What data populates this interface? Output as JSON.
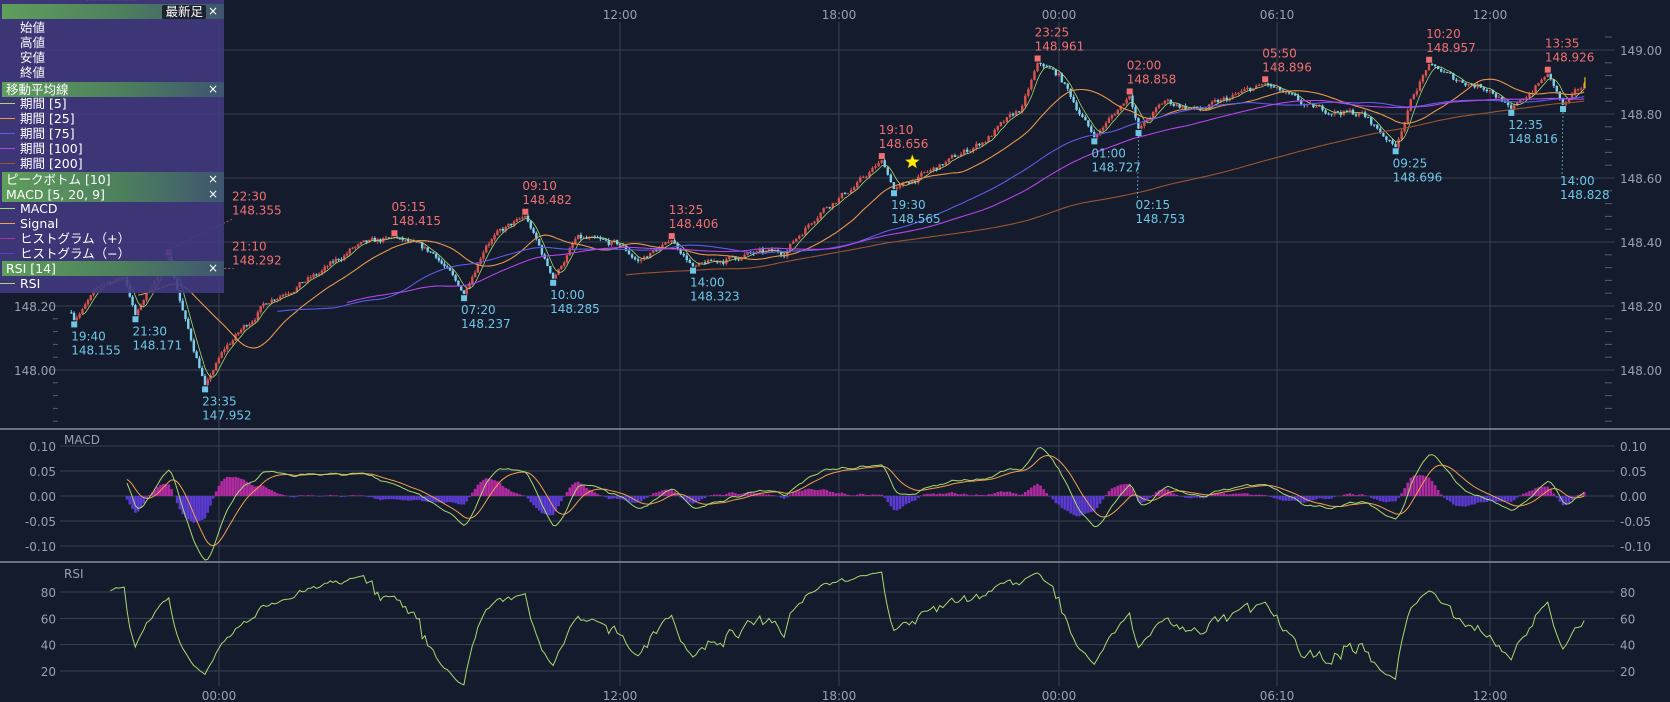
{
  "legend": {
    "latest": {
      "label": "最新足",
      "items": [
        "始値",
        "高値",
        "安値",
        "終値"
      ]
    },
    "ma": {
      "title": "移動平均線",
      "items": [
        {
          "label": "期間 [5]",
          "period": 5,
          "color": "#a9d86e"
        },
        {
          "label": "期間 [25]",
          "period": 25,
          "color": "#e8964a"
        },
        {
          "label": "期間 [75]",
          "period": 75,
          "color": "#5b5ce6"
        },
        {
          "label": "期間 [100]",
          "period": 100,
          "color": "#b444e6"
        },
        {
          "label": "期間 [200]",
          "period": 200,
          "color": "#9c5430"
        }
      ]
    },
    "peak_bottom": {
      "title": "ピークボトム [10]"
    },
    "macd": {
      "title": "MACD [5, 20, 9]",
      "items": [
        {
          "label": "MACD",
          "color": "#a9d86e"
        },
        {
          "label": "Signal",
          "color": "#f0a050"
        },
        {
          "label": "ヒストグラム（+）",
          "color": "#b02aa0"
        },
        {
          "label": "ヒストグラム（−）",
          "color": "#5a3ad0"
        }
      ]
    },
    "rsi": {
      "title": "RSI [14]",
      "items": [
        {
          "label": "RSI",
          "color": "#a9d86e"
        }
      ]
    },
    "close_icon": "×"
  },
  "chart_data": {
    "type": "candlestick",
    "x_ticks": [
      "00:00",
      "12:00",
      "18:00",
      "00:00",
      "06:10",
      "12:00"
    ],
    "price_axis": {
      "ticks": [
        "149.00",
        "148.80",
        "148.60",
        "148.40",
        "148.20",
        "148.00"
      ],
      "ylim": [
        147.85,
        149.1
      ]
    },
    "up_color": "#d9534f",
    "down_color": "#7fd0ee",
    "markers": [
      {
        "type": "bottom",
        "time": "19:40",
        "price": "148.155"
      },
      {
        "type": "peak",
        "time": "21:10",
        "price": "148.292"
      },
      {
        "type": "bottom",
        "time": "21:30",
        "price": "148.171"
      },
      {
        "type": "peak",
        "time": "22:30",
        "price": "148.355"
      },
      {
        "type": "bottom",
        "time": "23:35",
        "price": "147.952"
      },
      {
        "type": "peak",
        "time": "05:15",
        "price": "148.415"
      },
      {
        "type": "bottom",
        "time": "07:20",
        "price": "148.237"
      },
      {
        "type": "peak",
        "time": "09:10",
        "price": "148.482"
      },
      {
        "type": "bottom",
        "time": "10:00",
        "price": "148.285"
      },
      {
        "type": "peak",
        "time": "13:25",
        "price": "148.406"
      },
      {
        "type": "bottom",
        "time": "14:00",
        "price": "148.323"
      },
      {
        "type": "peak",
        "time": "19:10",
        "price": "148.656"
      },
      {
        "type": "bottom",
        "time": "19:30",
        "price": "148.565"
      },
      {
        "type": "peak",
        "time": "23:25",
        "price": "148.961"
      },
      {
        "type": "bottom",
        "time": "01:00",
        "price": "148.727"
      },
      {
        "type": "peak",
        "time": "02:00",
        "price": "148.858"
      },
      {
        "type": "bottom",
        "time": "02:15",
        "price": "148.753"
      },
      {
        "type": "peak",
        "time": "05:50",
        "price": "148.896"
      },
      {
        "type": "bottom",
        "time": "09:25",
        "price": "148.696"
      },
      {
        "type": "peak",
        "time": "10:20",
        "price": "148.957"
      },
      {
        "type": "bottom",
        "time": "12:35",
        "price": "148.816"
      },
      {
        "type": "peak",
        "time": "13:35",
        "price": "148.926"
      },
      {
        "type": "bottom",
        "time": "14:00",
        "price": "148.828"
      }
    ],
    "peak_color": "#f07070",
    "bottom_color": "#6ec6e6",
    "star_marker": {
      "icon": "star-icon",
      "color": "#ffee00"
    },
    "macd_pane": {
      "label": "MACD",
      "ticks": [
        "0.10",
        "0.05",
        "0.00",
        "-0.05",
        "-0.10"
      ],
      "ylim": [
        -0.13,
        0.13
      ]
    },
    "rsi_pane": {
      "label": "RSI",
      "ticks": [
        "80",
        "60",
        "40",
        "20"
      ],
      "ylim": [
        0,
        100
      ]
    },
    "grid": true
  }
}
